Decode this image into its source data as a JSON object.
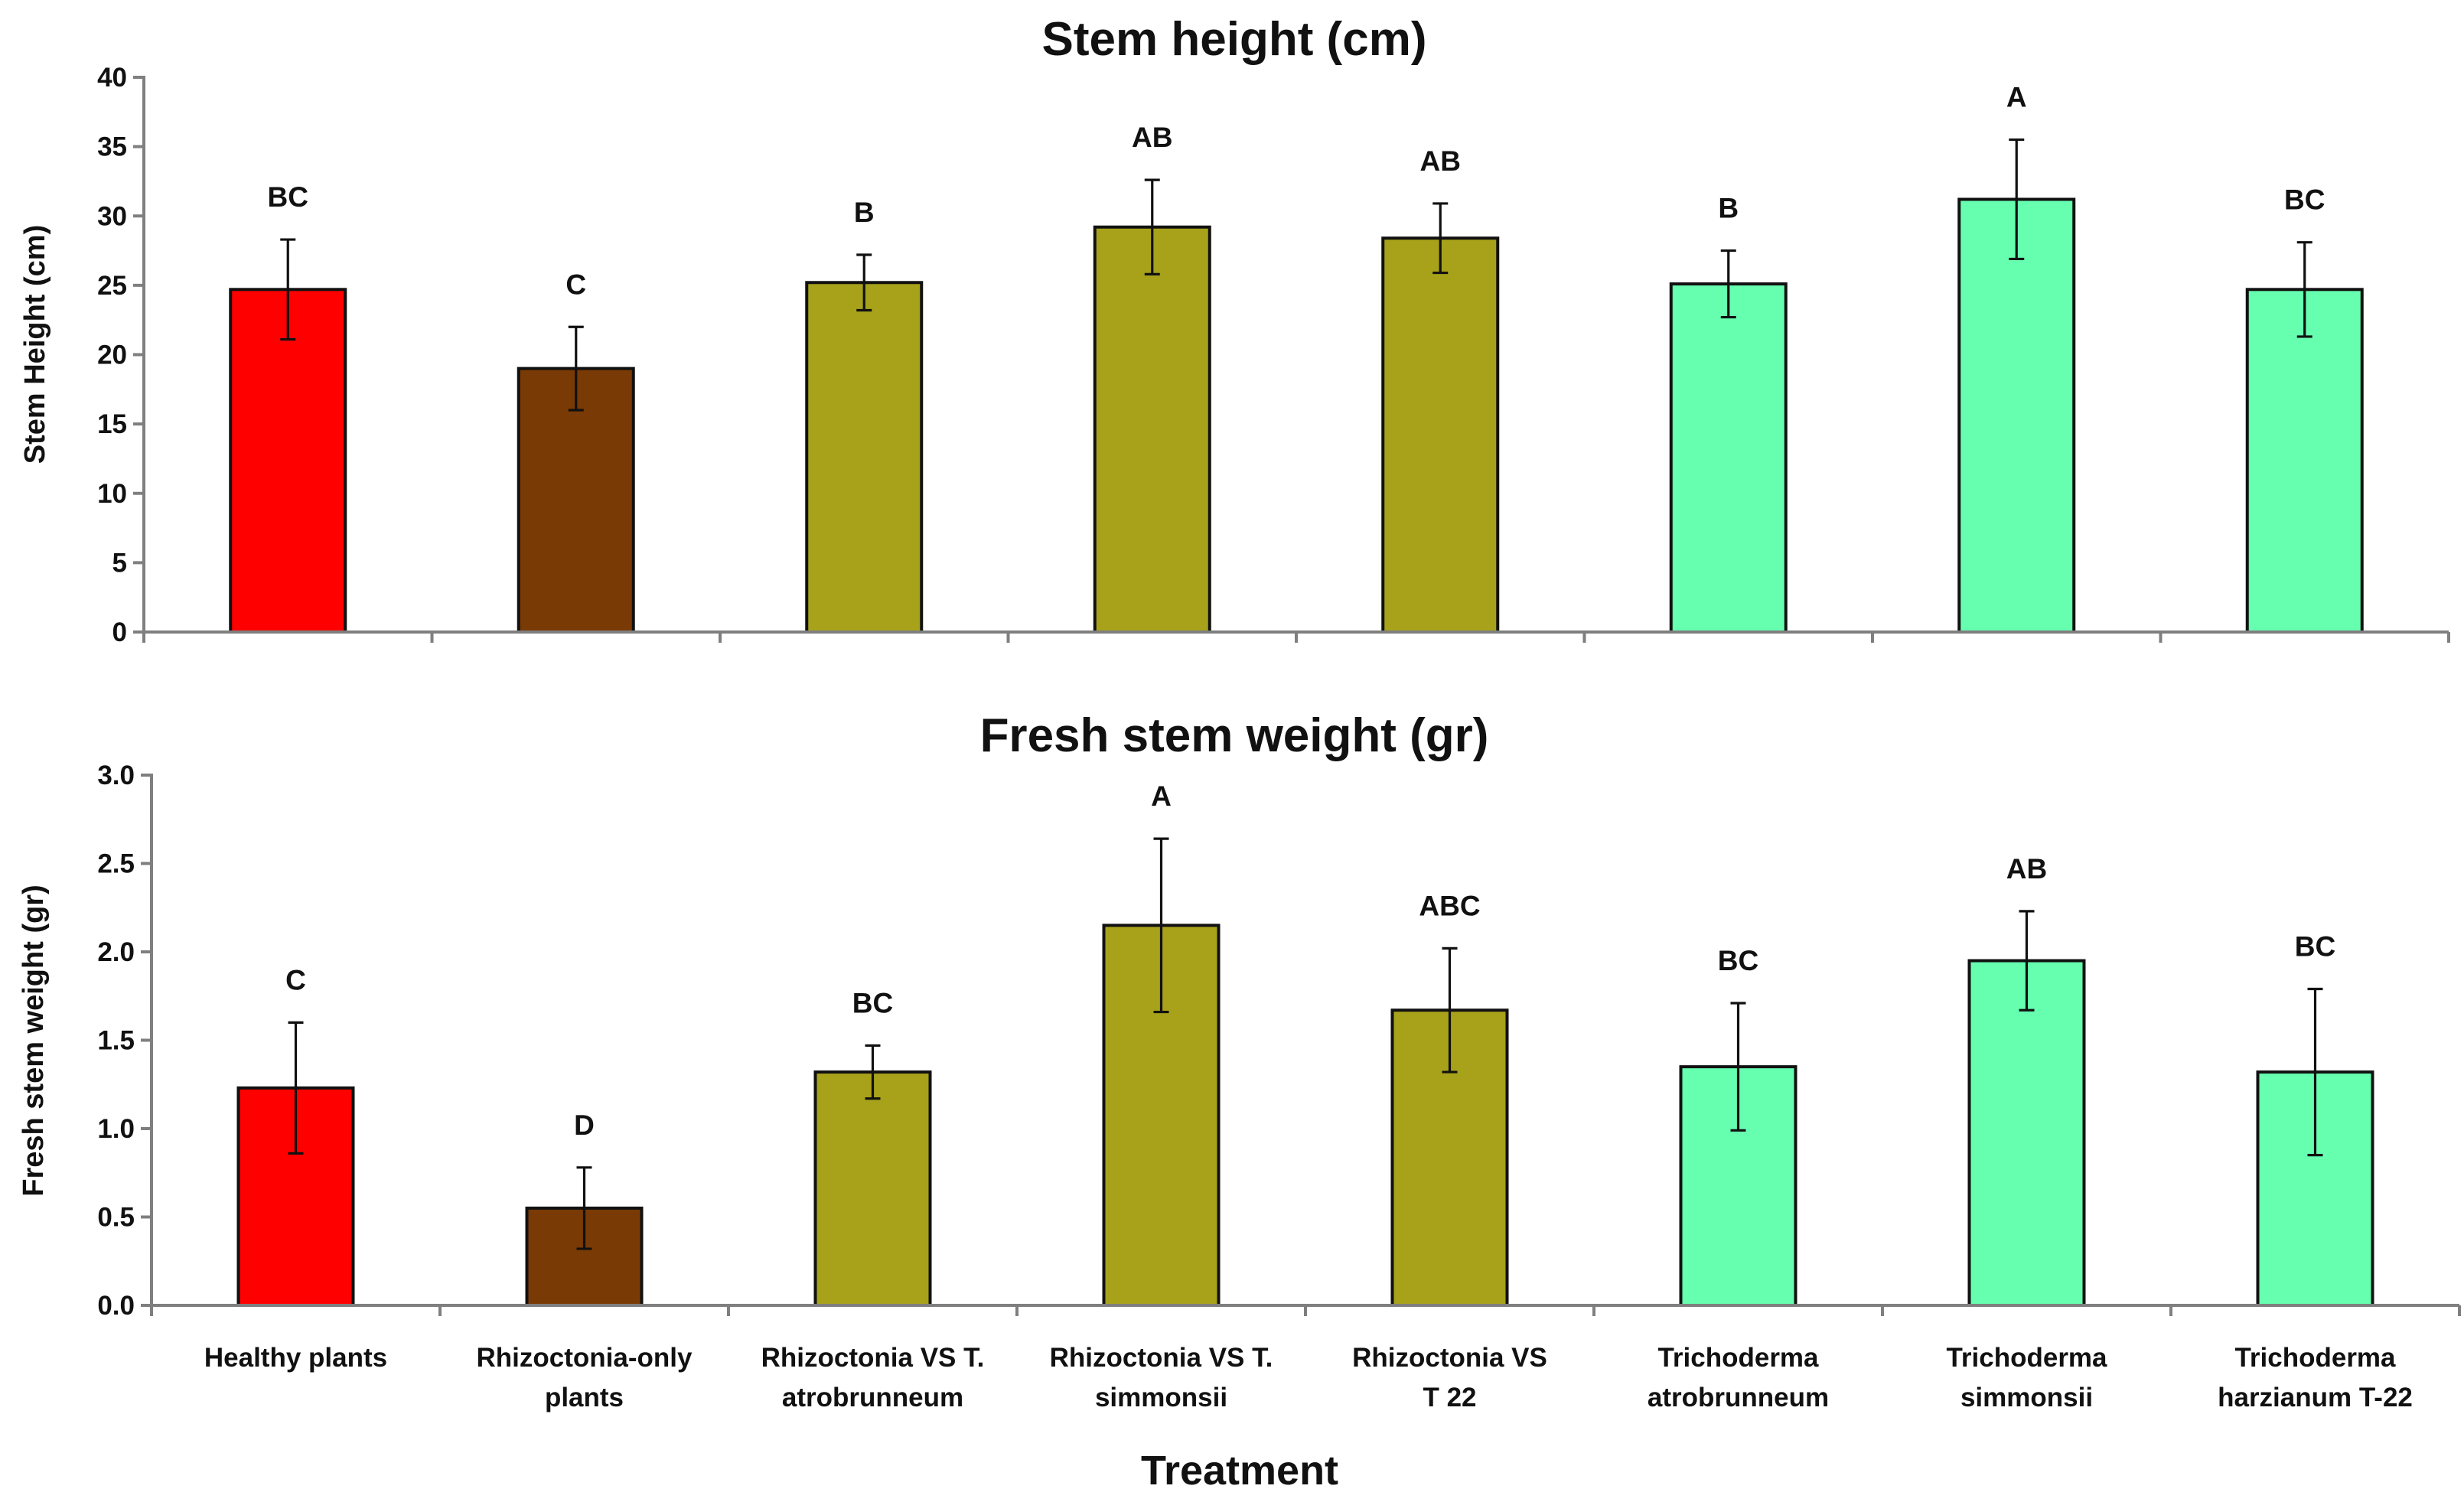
{
  "figure": {
    "x_axis_title": "Treatment",
    "categories": [
      [
        "Healthy plants"
      ],
      [
        "Rhizoctonia-only",
        "plants"
      ],
      [
        "Rhizoctonia VS T.",
        "atrobrunneum"
      ],
      [
        "Rhizoctonia VS T.",
        "simmonsii"
      ],
      [
        "Rhizoctonia VS",
        "T 22"
      ],
      [
        "Trichoderma",
        "atrobrunneum"
      ],
      [
        "Trichoderma",
        "simmonsii"
      ],
      [
        "Trichoderma",
        "harzianum T-22"
      ]
    ],
    "bar_colors": [
      "#ff0000",
      "#7a3a06",
      "#a7a21a",
      "#a7a21a",
      "#a7a21a",
      "#66ffb0",
      "#66ffb0",
      "#66ffb0"
    ]
  },
  "chart_data": [
    {
      "type": "bar",
      "title": "Stem height (cm)",
      "ylabel": "Stem Height (cm)",
      "xlabel": "Treatment",
      "ylim": [
        0,
        40
      ],
      "yticks": [
        0,
        5,
        10,
        15,
        20,
        25,
        30,
        35,
        40
      ],
      "tick_decimals": 0,
      "categories": [
        "Healthy plants",
        "Rhizoctonia-only plants",
        "Rhizoctonia VS T. atrobrunneum",
        "Rhizoctonia VS T. simmonsii",
        "Rhizoctonia VS T 22",
        "Trichoderma atrobrunneum",
        "Trichoderma simmonsii",
        "Trichoderma harzianum T-22"
      ],
      "values": [
        24.7,
        19.0,
        25.2,
        29.2,
        28.4,
        25.1,
        31.2,
        24.7
      ],
      "errors": [
        3.6,
        3.0,
        2.0,
        3.4,
        2.5,
        2.4,
        4.3,
        3.4
      ],
      "significance_letters": [
        "BC",
        "C",
        "B",
        "AB",
        "AB",
        "B",
        "A",
        "BC"
      ],
      "grid": false,
      "legend": "none"
    },
    {
      "type": "bar",
      "title": "Fresh stem weight  (gr)",
      "ylabel": "Fresh stem weight  (gr)",
      "xlabel": "Treatment",
      "ylim": [
        0,
        3.0
      ],
      "yticks": [
        0,
        0.5,
        1.0,
        1.5,
        2.0,
        2.5,
        3.0
      ],
      "tick_decimals": 1,
      "categories": [
        "Healthy plants",
        "Rhizoctonia-only plants",
        "Rhizoctonia VS T. atrobrunneum",
        "Rhizoctonia VS T. simmonsii",
        "Rhizoctonia VS T 22",
        "Trichoderma atrobrunneum",
        "Trichoderma simmonsii",
        "Trichoderma harzianum T-22"
      ],
      "values": [
        1.23,
        0.55,
        1.32,
        2.15,
        1.67,
        1.35,
        1.95,
        1.32
      ],
      "errors": [
        0.37,
        0.23,
        0.15,
        0.49,
        0.35,
        0.36,
        0.28,
        0.47
      ],
      "significance_letters": [
        "C",
        "D",
        "BC",
        "A",
        "ABC",
        "BC",
        "AB",
        "BC"
      ],
      "grid": false,
      "legend": "none"
    }
  ]
}
